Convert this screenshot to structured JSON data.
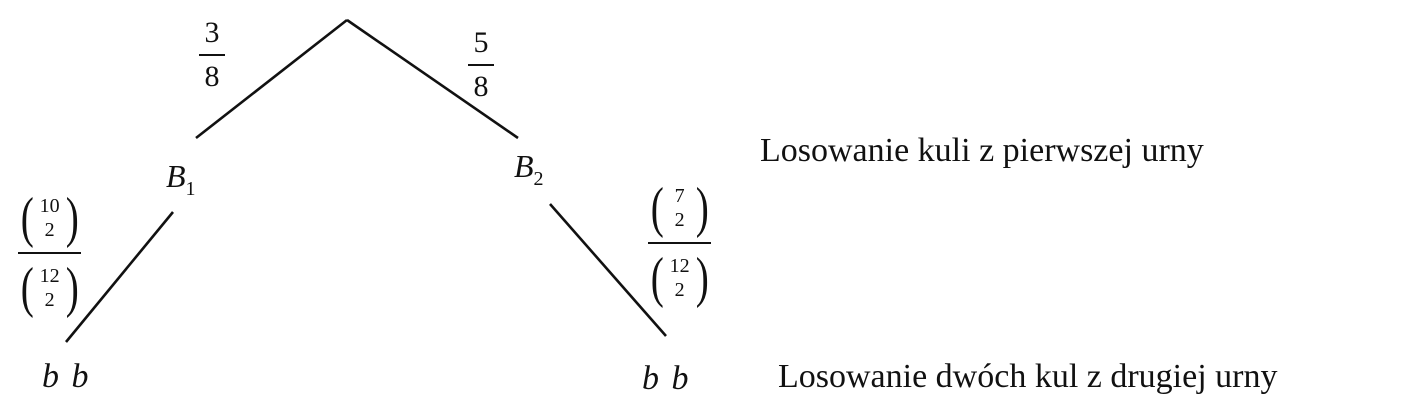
{
  "root_branches": {
    "left_prob": {
      "num": "3",
      "den": "8"
    },
    "right_prob": {
      "num": "5",
      "den": "8"
    }
  },
  "nodes": {
    "left": {
      "symbol": "B",
      "subscript": "1"
    },
    "right": {
      "symbol": "B",
      "subscript": "2"
    }
  },
  "second_branches": {
    "left_prob": {
      "num_top": "10",
      "num_bottom": "2",
      "den_top": "12",
      "den_bottom": "2"
    },
    "right_prob": {
      "num_top": "7",
      "num_bottom": "2",
      "den_top": "12",
      "den_bottom": "2"
    }
  },
  "leaves": {
    "left": "b b",
    "right": "b b"
  },
  "stage_labels": {
    "first": "Losowanie kuli z pierwszej urny",
    "second": "Losowanie dwóch kul z drugiej urny"
  }
}
